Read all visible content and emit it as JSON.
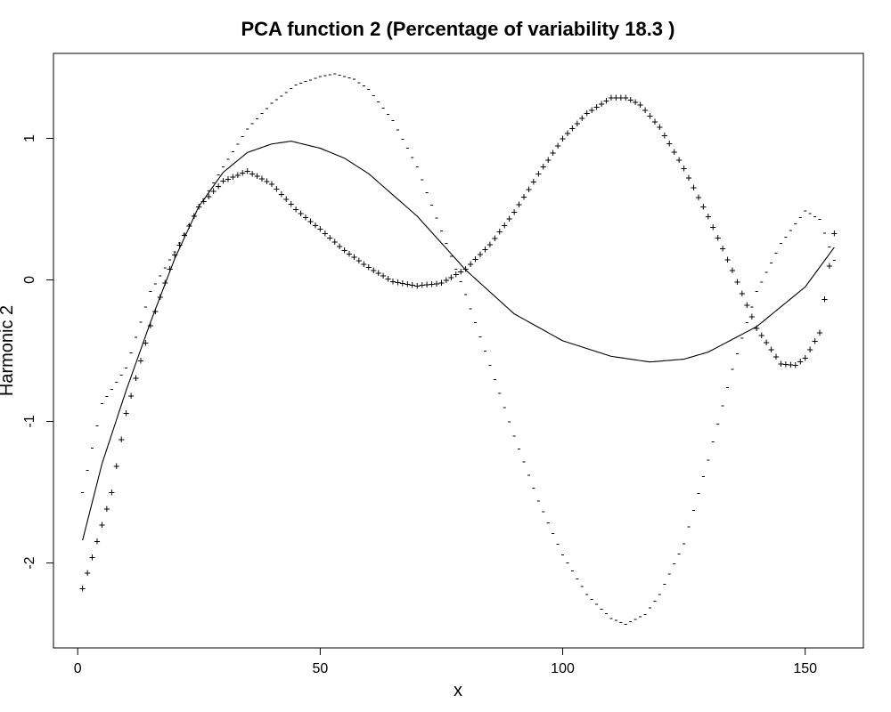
{
  "chart_data": {
    "type": "line",
    "title": "PCA function 2 (Percentage of variability 18.3 )",
    "xlabel": "x",
    "ylabel": "Harmonic 2",
    "xlim": [
      -5,
      162
    ],
    "ylim": [
      -2.6,
      1.6
    ],
    "xticks": [
      0,
      50,
      100,
      150
    ],
    "yticks": [
      -2,
      -1,
      0,
      1
    ],
    "grid": false,
    "legend": "none",
    "x_range": [
      1,
      156
    ],
    "series": [
      {
        "role": "mean",
        "style": "solid",
        "knots": [
          [
            1,
            -1.84
          ],
          [
            5,
            -1.3
          ],
          [
            10,
            -0.78
          ],
          [
            15,
            -0.3
          ],
          [
            20,
            0.15
          ],
          [
            25,
            0.52
          ],
          [
            30,
            0.76
          ],
          [
            35,
            0.9
          ],
          [
            40,
            0.96
          ],
          [
            44,
            0.98
          ],
          [
            50,
            0.93
          ],
          [
            55,
            0.86
          ],
          [
            60,
            0.75
          ],
          [
            70,
            0.45
          ],
          [
            80,
            0.07
          ],
          [
            90,
            -0.24
          ],
          [
            100,
            -0.43
          ],
          [
            110,
            -0.54
          ],
          [
            118,
            -0.58
          ],
          [
            125,
            -0.56
          ],
          [
            130,
            -0.51
          ],
          [
            140,
            -0.33
          ],
          [
            150,
            -0.05
          ],
          [
            156,
            0.23
          ]
        ]
      },
      {
        "role": "plus",
        "marker": "+",
        "knots": [
          [
            1,
            -2.18
          ],
          [
            3,
            -1.96
          ],
          [
            5,
            -1.73
          ],
          [
            7,
            -1.5
          ],
          [
            10,
            -0.94
          ],
          [
            15,
            -0.32
          ],
          [
            20,
            0.18
          ],
          [
            25,
            0.52
          ],
          [
            30,
            0.7
          ],
          [
            35,
            0.77
          ],
          [
            40,
            0.68
          ],
          [
            45,
            0.5
          ],
          [
            50,
            0.36
          ],
          [
            55,
            0.21
          ],
          [
            60,
            0.09
          ],
          [
            65,
            -0.01
          ],
          [
            70,
            -0.04
          ],
          [
            75,
            -0.02
          ],
          [
            80,
            0.08
          ],
          [
            85,
            0.25
          ],
          [
            90,
            0.48
          ],
          [
            95,
            0.75
          ],
          [
            100,
            1.0
          ],
          [
            105,
            1.18
          ],
          [
            110,
            1.29
          ],
          [
            113,
            1.29
          ],
          [
            116,
            1.24
          ],
          [
            120,
            1.08
          ],
          [
            125,
            0.79
          ],
          [
            130,
            0.45
          ],
          [
            135,
            0.07
          ],
          [
            140,
            -0.34
          ],
          [
            145,
            -0.59
          ],
          [
            148,
            -0.6
          ],
          [
            150,
            -0.55
          ],
          [
            153,
            -0.37
          ],
          [
            155,
            0.1
          ],
          [
            156,
            0.33
          ]
        ]
      },
      {
        "role": "minus",
        "marker": "-",
        "knots": [
          [
            1,
            -1.5
          ],
          [
            5,
            -0.87
          ],
          [
            10,
            -0.62
          ],
          [
            15,
            -0.08
          ],
          [
            20,
            0.2
          ],
          [
            25,
            0.52
          ],
          [
            30,
            0.8
          ],
          [
            35,
            1.07
          ],
          [
            40,
            1.25
          ],
          [
            45,
            1.38
          ],
          [
            50,
            1.44
          ],
          [
            53,
            1.46
          ],
          [
            57,
            1.42
          ],
          [
            60,
            1.35
          ],
          [
            65,
            1.13
          ],
          [
            70,
            0.8
          ],
          [
            75,
            0.35
          ],
          [
            80,
            -0.1
          ],
          [
            85,
            -0.6
          ],
          [
            90,
            -1.1
          ],
          [
            95,
            -1.56
          ],
          [
            100,
            -1.94
          ],
          [
            105,
            -2.22
          ],
          [
            110,
            -2.39
          ],
          [
            113,
            -2.43
          ],
          [
            117,
            -2.36
          ],
          [
            120,
            -2.22
          ],
          [
            125,
            -1.86
          ],
          [
            130,
            -1.27
          ],
          [
            135,
            -0.63
          ],
          [
            140,
            -0.08
          ],
          [
            145,
            0.26
          ],
          [
            150,
            0.49
          ],
          [
            153,
            0.43
          ],
          [
            156,
            0.14
          ]
        ]
      }
    ]
  }
}
